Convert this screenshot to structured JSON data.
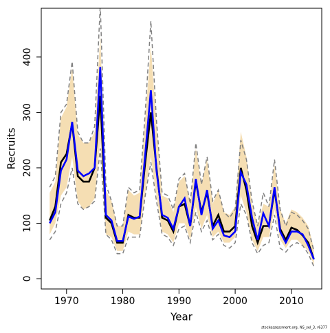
{
  "chart_data": {
    "type": "line",
    "xlabel": "Year",
    "ylabel": "Recruits",
    "note": "stockassessment.org, NS_sel_3, r6377",
    "x": [
      1967,
      1968,
      1969,
      1970,
      1971,
      1972,
      1973,
      1974,
      1975,
      1976,
      1977,
      1978,
      1979,
      1980,
      1981,
      1982,
      1983,
      1984,
      1985,
      1986,
      1987,
      1988,
      1989,
      1990,
      1991,
      1992,
      1993,
      1994,
      1995,
      1996,
      1997,
      1998,
      1999,
      2000,
      2001,
      2002,
      2003,
      2004,
      2005,
      2006,
      2007,
      2008,
      2009,
      2010,
      2011,
      2012,
      2013,
      2014
    ],
    "band": {
      "color": "#f5deb3",
      "lower": [
        80,
        100,
        150,
        165,
        220,
        140,
        125,
        130,
        145,
        250,
        80,
        75,
        50,
        50,
        85,
        80,
        80,
        155,
        220,
        150,
        85,
        80,
        65,
        100,
        100,
        70,
        130,
        90,
        115,
        75,
        85,
        65,
        65,
        75,
        150,
        120,
        70,
        50,
        75,
        75,
        125,
        70,
        55,
        70,
        70,
        60,
        50,
        25
      ],
      "upper": [
        155,
        175,
        290,
        310,
        380,
        260,
        245,
        245,
        265,
        440,
        160,
        140,
        95,
        95,
        160,
        150,
        155,
        290,
        420,
        280,
        150,
        145,
        120,
        175,
        185,
        135,
        235,
        170,
        215,
        135,
        160,
        120,
        115,
        130,
        265,
        220,
        135,
        95,
        135,
        130,
        205,
        125,
        100,
        125,
        120,
        110,
        95,
        55
      ]
    },
    "series": [
      {
        "color": "#808080",
        "dashed": true,
        "values": [
          165,
          185,
          300,
          315,
          392,
          265,
          245,
          245,
          275,
          495,
          170,
          140,
          95,
          95,
          165,
          155,
          160,
          300,
          465,
          285,
          155,
          150,
          125,
          180,
          190,
          135,
          245,
          170,
          220,
          140,
          160,
          120,
          110,
          125,
          250,
          215,
          140,
          95,
          155,
          130,
          215,
          125,
          95,
          120,
          115,
          105,
          90,
          50
        ]
      },
      {
        "color": "#808080",
        "dashed": true,
        "values": [
          70,
          85,
          135,
          155,
          200,
          135,
          125,
          130,
          140,
          235,
          80,
          70,
          45,
          45,
          75,
          75,
          75,
          150,
          210,
          140,
          80,
          75,
          60,
          90,
          95,
          65,
          120,
          85,
          105,
          70,
          80,
          60,
          55,
          65,
          135,
          115,
          65,
          45,
          60,
          65,
          115,
          55,
          48,
          60,
          65,
          60,
          45,
          22
        ]
      },
      {
        "color": "#000000",
        "dashed": false,
        "values": [
          105,
          130,
          210,
          225,
          280,
          185,
          175,
          175,
          200,
          330,
          110,
          100,
          65,
          65,
          115,
          110,
          110,
          210,
          300,
          200,
          110,
          105,
          85,
          130,
          135,
          95,
          175,
          120,
          155,
          95,
          115,
          85,
          85,
          95,
          200,
          160,
          95,
          65,
          95,
          95,
          160,
          90,
          70,
          92,
          88,
          78,
          65,
          35
        ]
      },
      {
        "color": "#0000ff",
        "dashed": false,
        "values": [
          100,
          120,
          195,
          215,
          283,
          195,
          185,
          190,
          200,
          382,
          115,
          105,
          68,
          68,
          112,
          108,
          112,
          225,
          340,
          195,
          115,
          110,
          90,
          130,
          145,
          95,
          180,
          115,
          160,
          90,
          105,
          78,
          75,
          85,
          192,
          170,
          110,
          70,
          118,
          95,
          165,
          85,
          65,
          85,
          85,
          80,
          60,
          35
        ]
      }
    ],
    "xlim": [
      1965.5,
      2015.4
    ],
    "ylim": [
      -18.6,
      488
    ],
    "xticks": [
      1970,
      1980,
      1990,
      2000,
      2010
    ],
    "yticks": [
      0,
      100,
      200,
      300,
      400
    ]
  }
}
